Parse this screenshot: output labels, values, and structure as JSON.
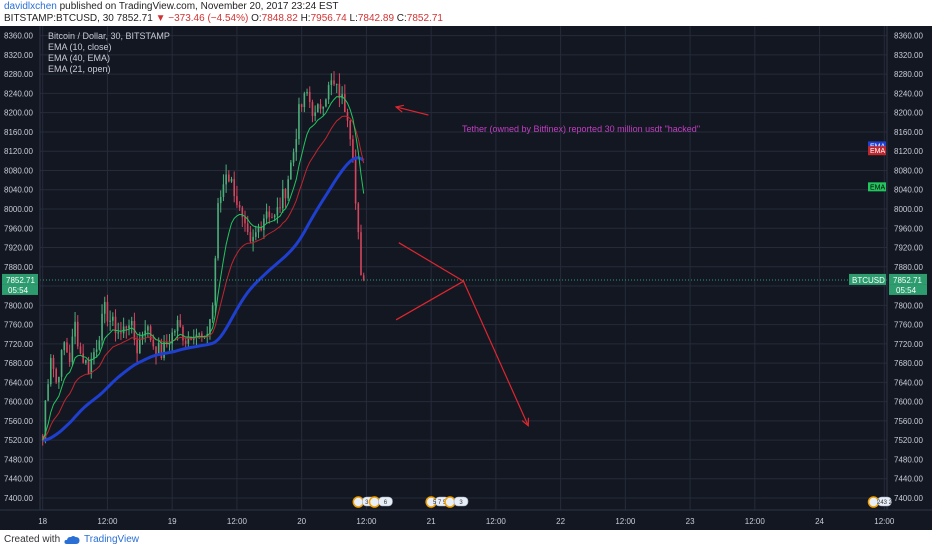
{
  "header": {
    "username": "davidlxchen",
    "published": " published on TradingView.com, November 20, 2017 23:24 EST",
    "symbol": "BITSTAMP:BTCUSD, 30",
    "last": "7852.71",
    "change": "▼ −373.46 (−4.54%)",
    "o_label": "O:",
    "o_value": "7848.82",
    "h_label": "H:",
    "h_value": "7956.74",
    "l_label": "L:",
    "l_value": "7842.89",
    "c_label": "C:",
    "c_value": "7852.71"
  },
  "legend": {
    "title": "Bitcoin / Dollar, 30, BITSTAMP",
    "items": [
      "EMA (10, close)",
      "EMA (40, EMA)",
      "EMA (21, open)"
    ]
  },
  "annotation": "Tether (owned by Bitfinex) reported 30 million usdt \"hacked\"",
  "price_tag": {
    "left_value": "7852.71",
    "left_timer": "05:54",
    "symbol_label": "BTCUSD",
    "right_value": "7852.71",
    "right_timer": "05:54"
  },
  "ema_tags": [
    "EMA",
    "EMA",
    "EMA"
  ],
  "events": [
    "3 2",
    "6",
    "5 7 5 1",
    "3",
    "243 2"
  ],
  "footer": {
    "created": "Created with",
    "brand": "TradingView"
  },
  "colors": {
    "background": "#131722",
    "grid": "#262b3a",
    "text": "#c9ccd6",
    "up": "#4caf7a",
    "down": "#d4455e",
    "ema10": "#22c55e",
    "ema40": "#1f3fcf",
    "ema21": "#c0262e",
    "annotation": "#c03fc0",
    "arrow": "#e0262e",
    "price_tag": "#2d9c6e"
  },
  "chart_data": {
    "type": "candlestick",
    "y_ticks": [
      7400,
      7440,
      7480,
      7520,
      7560,
      7600,
      7640,
      7680,
      7720,
      7760,
      7800,
      7840,
      7880,
      7920,
      7960,
      8000,
      8040,
      8080,
      8120,
      8160,
      8200,
      8240,
      8280,
      8320,
      8360
    ],
    "y_tick_labels": [
      "7400.00",
      "7440.00",
      "7480.00",
      "7520.00",
      "7560.00",
      "7600.00",
      "7640.00",
      "7680.00",
      "7720.00",
      "7760.00",
      "7800.00",
      "7840.00",
      "7880.00",
      "7920.00",
      "7960.00",
      "8000.00",
      "8040.00",
      "8080.00",
      "8120.00",
      "8160.00",
      "8200.00",
      "8240.00",
      "8280.00",
      "8320.00",
      "8360.00"
    ],
    "ylim": [
      7375,
      8380
    ],
    "x_labels": [
      {
        "label": "18",
        "bar": 0
      },
      {
        "label": "12:00",
        "bar": 24
      },
      {
        "label": "19",
        "bar": 48
      },
      {
        "label": "12:00",
        "bar": 72
      },
      {
        "label": "20",
        "bar": 96
      },
      {
        "label": "12:00",
        "bar": 120
      },
      {
        "label": "21",
        "bar": 144
      },
      {
        "label": "12:00",
        "bar": 168
      },
      {
        "label": "22",
        "bar": 192
      },
      {
        "label": "12:00",
        "bar": 216
      },
      {
        "label": "23",
        "bar": 240
      },
      {
        "label": "12:00",
        "bar": 264
      },
      {
        "label": "24",
        "bar": 288
      },
      {
        "label": "12:00",
        "bar": 312
      }
    ],
    "x_range_bars": [
      -1,
      313
    ],
    "last_price": 7852.71,
    "price_anchors": [
      [
        0,
        7520
      ],
      [
        1,
        7600
      ],
      [
        3,
        7700
      ],
      [
        5,
        7640
      ],
      [
        8,
        7720
      ],
      [
        10,
        7690
      ],
      [
        12,
        7760
      ],
      [
        14,
        7700
      ],
      [
        17,
        7670
      ],
      [
        20,
        7720
      ],
      [
        23,
        7790
      ],
      [
        26,
        7760
      ],
      [
        29,
        7740
      ],
      [
        32,
        7770
      ],
      [
        35,
        7710
      ],
      [
        38,
        7760
      ],
      [
        41,
        7720
      ],
      [
        44,
        7700
      ],
      [
        47,
        7730
      ],
      [
        50,
        7760
      ],
      [
        53,
        7730
      ],
      [
        56,
        7750
      ],
      [
        60,
        7720
      ],
      [
        63,
        7800
      ],
      [
        65,
        8000
      ],
      [
        68,
        8080
      ],
      [
        71,
        8040
      ],
      [
        74,
        7970
      ],
      [
        77,
        7920
      ],
      [
        80,
        7960
      ],
      [
        83,
        8000
      ],
      [
        86,
        7980
      ],
      [
        90,
        8040
      ],
      [
        93,
        8120
      ],
      [
        95,
        8200
      ],
      [
        98,
        8240
      ],
      [
        101,
        8190
      ],
      [
        104,
        8230
      ],
      [
        107,
        8260
      ],
      [
        110,
        8240
      ],
      [
        113,
        8200
      ],
      [
        115,
        8120
      ],
      [
        116,
        8010
      ],
      [
        117,
        7940
      ],
      [
        118,
        7850
      ],
      [
        119,
        7852.71
      ]
    ],
    "ema_tag_values": [
      8130,
      8120,
      8045
    ],
    "drawing": {
      "annotation_arrow": {
        "from": [
          143,
          8195
        ],
        "to": [
          131,
          8212
        ]
      },
      "projection": [
        [
          132,
          7930
        ],
        [
          156,
          7850
        ],
        [
          131,
          7770
        ]
      ],
      "projection_arrow": {
        "from": [
          156,
          7850
        ],
        "to": [
          180,
          7550
        ]
      }
    },
    "event_bars": [
      117,
      123,
      144,
      151,
      308
    ]
  }
}
